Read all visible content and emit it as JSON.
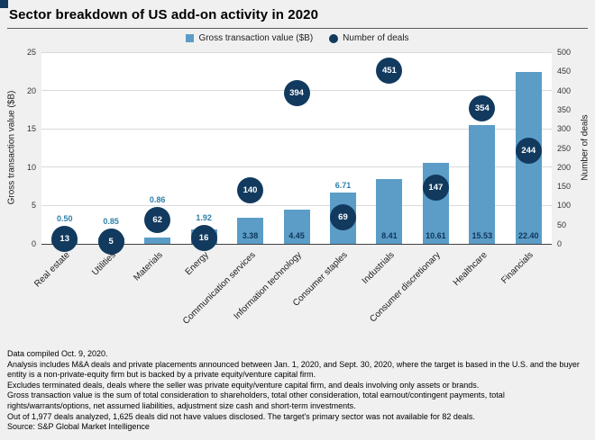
{
  "title": "Sector breakdown of US add-on activity in 2020",
  "legend": [
    {
      "label": "Gross transaction value ($B)",
      "swatch": "square"
    },
    {
      "label": "Number of deals",
      "swatch": "circle"
    }
  ],
  "colors": {
    "bar": "#5b9dc7",
    "deal_circle": "#123a5e",
    "value_label_top": "#2e7fa9",
    "value_label_base": "#10365c",
    "grid": "#d9d9d9",
    "axis": "#404040",
    "background": "#f0f0f0",
    "plot_bg": "#ffffff"
  },
  "chart_data": {
    "type": "bar",
    "categories": [
      "Real estate",
      "Utilities",
      "Materials",
      "Energy",
      "Communication services",
      "Information technology",
      "Consumer staples",
      "Industrials",
      "Consumer discretionary",
      "Healthcare",
      "Financials"
    ],
    "series": [
      {
        "name": "Gross transaction value ($B)",
        "type": "bar",
        "axis": "left",
        "values": [
          0.5,
          0.85,
          0.86,
          1.92,
          3.38,
          4.45,
          6.71,
          8.41,
          10.61,
          15.53,
          22.4
        ],
        "label_positions": [
          "top",
          "top",
          "top",
          "top",
          "base",
          "base",
          "top",
          "base",
          "base",
          "base",
          "base"
        ]
      },
      {
        "name": "Number of deals",
        "type": "point",
        "axis": "right",
        "values": [
          13,
          5,
          62,
          16,
          140,
          394,
          69,
          451,
          147,
          354,
          244
        ]
      }
    ],
    "left_axis": {
      "label": "Gross transaction value ($B)",
      "min": 0,
      "max": 25,
      "step": 5
    },
    "right_axis": {
      "label": "Number of deals",
      "min": 0,
      "max": 500,
      "step": 50
    },
    "grid": true,
    "legend_position": "top"
  },
  "footnotes": [
    "Data compiled Oct. 9, 2020.",
    "Analysis includes M&A deals and private placements announced between Jan. 1, 2020, and Sept. 30, 2020, where the target is based in the U.S. and the buyer entity is a non-private-equity firm but is backed by a private equity/venture capital firm.",
    "Excludes terminated deals, deals where the seller was private equity/venture capital firm, and deals involving only assets or brands.",
    "Gross transaction value is the sum of total consideration to shareholders, total other consideration, total earnout/contingent payments, total rights/warrants/options, net assumed liabilities, adjustment size cash and short-term investments.",
    "Out of 1,977 deals analyzed, 1,625 deals did not have values disclosed. The target's primary sector was not available for 82 deals.",
    "Source: S&P Global Market Intelligence"
  ]
}
